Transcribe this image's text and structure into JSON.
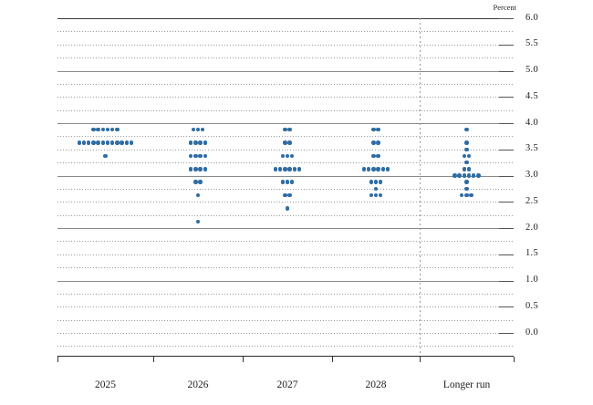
{
  "chart_data": {
    "type": "scatter",
    "variant": "fomc-dot-plot",
    "unit_label": "Percent",
    "categories": [
      "2025",
      "2026",
      "2027",
      "2028",
      "Longer run"
    ],
    "y_axis": {
      "min": 0.0,
      "max": 6.0,
      "label_step": 0.5,
      "grid_step": 0.25,
      "tick_labels": [
        "6.0",
        "5.5",
        "5.0",
        "4.5",
        "4.0",
        "3.5",
        "3.0",
        "2.5",
        "2.0",
        "1.5",
        "1.0",
        "0.5",
        "0.0"
      ]
    },
    "grid": "dotted lines every 0.25, solid lines at integers, right ticks every 0.5",
    "legend_position": "none",
    "dot_color": "#2E6DA4",
    "separator_before_category": "Longer run",
    "series": [
      {
        "category": "2025",
        "dots": [
          {
            "rate": 3.875,
            "count": 6
          },
          {
            "rate": 3.625,
            "count": 12
          },
          {
            "rate": 3.375,
            "count": 1
          }
        ]
      },
      {
        "category": "2026",
        "dots": [
          {
            "rate": 3.875,
            "count": 3
          },
          {
            "rate": 3.625,
            "count": 4
          },
          {
            "rate": 3.375,
            "count": 4
          },
          {
            "rate": 3.125,
            "count": 4
          },
          {
            "rate": 2.875,
            "count": 2
          },
          {
            "rate": 2.625,
            "count": 1
          },
          {
            "rate": 2.125,
            "count": 1
          }
        ]
      },
      {
        "category": "2027",
        "dots": [
          {
            "rate": 3.875,
            "count": 2
          },
          {
            "rate": 3.625,
            "count": 2
          },
          {
            "rate": 3.375,
            "count": 3
          },
          {
            "rate": 3.125,
            "count": 6
          },
          {
            "rate": 2.875,
            "count": 3
          },
          {
            "rate": 2.625,
            "count": 2
          },
          {
            "rate": 2.375,
            "count": 1
          }
        ]
      },
      {
        "category": "2028",
        "dots": [
          {
            "rate": 3.875,
            "count": 2
          },
          {
            "rate": 3.625,
            "count": 2
          },
          {
            "rate": 3.375,
            "count": 2
          },
          {
            "rate": 3.125,
            "count": 6
          },
          {
            "rate": 2.875,
            "count": 3
          },
          {
            "rate": 2.75,
            "count": 1
          },
          {
            "rate": 2.625,
            "count": 3
          }
        ]
      },
      {
        "category": "Longer run",
        "dots": [
          {
            "rate": 3.875,
            "count": 1
          },
          {
            "rate": 3.625,
            "count": 1
          },
          {
            "rate": 3.5,
            "count": 1
          },
          {
            "rate": 3.375,
            "count": 2
          },
          {
            "rate": 3.25,
            "count": 1
          },
          {
            "rate": 3.125,
            "count": 2
          },
          {
            "rate": 3.0,
            "count": 6
          },
          {
            "rate": 2.875,
            "count": 1
          },
          {
            "rate": 2.75,
            "count": 1
          },
          {
            "rate": 2.625,
            "count": 3
          }
        ]
      }
    ]
  }
}
